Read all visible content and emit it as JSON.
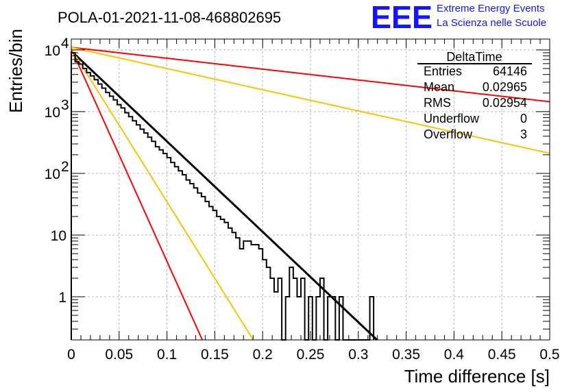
{
  "chart_data": {
    "type": "histogram",
    "title": "POLA-01-2021-11-08-468802695",
    "xlabel": "Time difference [s]",
    "ylabel": "Entries/bin",
    "xlim": [
      0,
      0.5
    ],
    "ylim": [
      0.2,
      15000
    ],
    "yscale": "log",
    "grid": true,
    "x_ticks": [
      "0",
      "0.05",
      "0.1",
      "0.15",
      "0.2",
      "0.25",
      "0.3",
      "0.35",
      "0.4",
      "0.45",
      "0.5"
    ],
    "x_tick_values": [
      0,
      0.05,
      0.1,
      0.15,
      0.2,
      0.25,
      0.3,
      0.35,
      0.4,
      0.45,
      0.5
    ],
    "y_ticks": [
      {
        "value": 1,
        "base": "1",
        "exp": ""
      },
      {
        "value": 10,
        "base": "10",
        "exp": ""
      },
      {
        "value": 100,
        "base": "10",
        "exp": "2"
      },
      {
        "value": 1000,
        "base": "10",
        "exp": "3"
      },
      {
        "value": 10000,
        "base": "10",
        "exp": "4"
      }
    ],
    "histogram": {
      "bin_width": 0.004,
      "counts": [
        9000,
        6400,
        5900,
        5000,
        4300,
        3800,
        3300,
        2800,
        2400,
        2050,
        1780,
        1550,
        1300,
        1150,
        960,
        830,
        710,
        610,
        520,
        450,
        385,
        330,
        270,
        240,
        210,
        180,
        150,
        128,
        110,
        95,
        78,
        68,
        58,
        48,
        42,
        35,
        29,
        25,
        20,
        18,
        16,
        13,
        11,
        9,
        6,
        8,
        8,
        7,
        7,
        6,
        4,
        3,
        2,
        1.2,
        2,
        0,
        1,
        3,
        2,
        1,
        2,
        0,
        1,
        0,
        1,
        2,
        0,
        1,
        1,
        0,
        1,
        0,
        0,
        0,
        0,
        0,
        0,
        0,
        1
      ]
    },
    "fits": [
      {
        "color": "#000000",
        "A": 9600,
        "tau": 0.02965
      },
      {
        "color": "#ff0000",
        "A": 10500,
        "tau": 0.0126
      },
      {
        "color": "#ffc000",
        "A": 10500,
        "tau": 0.0175
      },
      {
        "color": "#ff0000",
        "A": 11000,
        "tau": 0.2465
      },
      {
        "color": "#ffc000",
        "A": 11000,
        "tau": 0.1265
      }
    ],
    "stats": {
      "name": "DeltaTime",
      "rows": [
        {
          "label": "Entries",
          "value": "64146"
        },
        {
          "label": "Mean",
          "value": "0.02965"
        },
        {
          "label": "RMS",
          "value": "0.02954"
        },
        {
          "label": "Underflow",
          "value": "0"
        },
        {
          "label": "Overflow",
          "value": "3"
        }
      ]
    }
  },
  "logo": {
    "mark": "EEE",
    "line1": "Extreme Energy Events",
    "line2": "La Scienza nelle Scuole"
  }
}
